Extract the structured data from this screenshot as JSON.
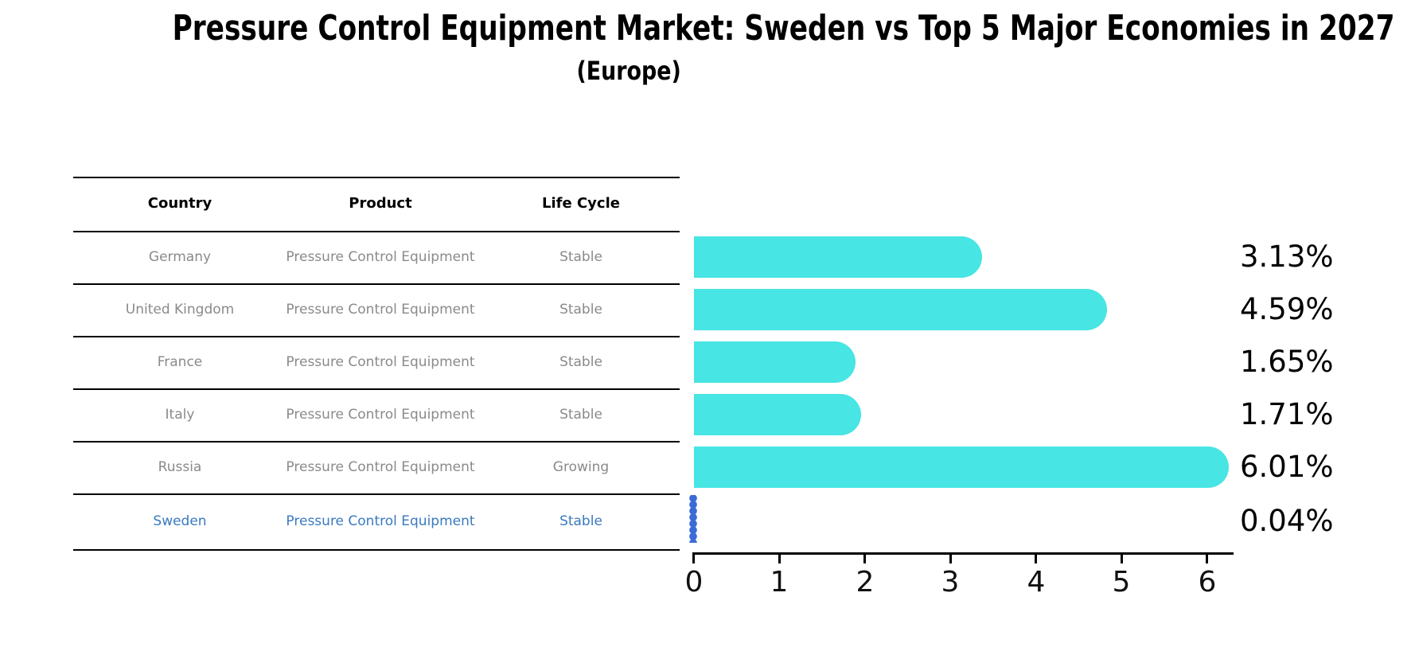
{
  "title": "Pressure Control Equipment Market: Sweden vs Top 5 Major Economies in 2027",
  "subtitle": "(Europe)",
  "table": {
    "headers": [
      "Country",
      "Product",
      "Life Cycle"
    ],
    "rows": [
      {
        "country": "Germany",
        "product": "Pressure Control Equipment",
        "life_cycle": "Stable",
        "highlighted": false
      },
      {
        "country": "United Kingdom",
        "product": "Pressure Control Equipment",
        "life_cycle": "Stable",
        "highlighted": false
      },
      {
        "country": "France",
        "product": "Pressure Control Equipment",
        "life_cycle": "Stable",
        "highlighted": false
      },
      {
        "country": "Italy",
        "product": "Pressure Control Equipment",
        "life_cycle": "Stable",
        "highlighted": false
      },
      {
        "country": "Russia",
        "product": "Pressure Control Equipment",
        "life_cycle": "Growing",
        "highlighted": false
      },
      {
        "country": "Sweden",
        "product": "Pressure Control Equipment",
        "life_cycle": "Stable",
        "highlighted": true
      }
    ]
  },
  "chart_data": {
    "type": "bar",
    "orientation": "horizontal",
    "categories": [
      "Germany",
      "United Kingdom",
      "France",
      "Italy",
      "Russia",
      "Sweden"
    ],
    "values": [
      3.13,
      4.59,
      1.65,
      1.71,
      6.01,
      0.04
    ],
    "value_labels": [
      "3.13%",
      "4.59%",
      "1.65%",
      "1.71%",
      "6.01%",
      "0.04%"
    ],
    "xticks": [
      "0",
      "1",
      "2",
      "3",
      "4",
      "5",
      "6"
    ],
    "xlim": [
      0,
      6.3
    ],
    "grid": false,
    "legend": "none",
    "highlight_category": "Sweden",
    "title": "Pressure Control Equipment Market: Sweden vs Top 5 Major Economies in 2027 (Europe)"
  },
  "colors": {
    "bar": "#47e5e3",
    "highlight-bar": "#3b6cd6",
    "highlight-text": "#3a7abf",
    "row-text": "#8a8a8a"
  }
}
